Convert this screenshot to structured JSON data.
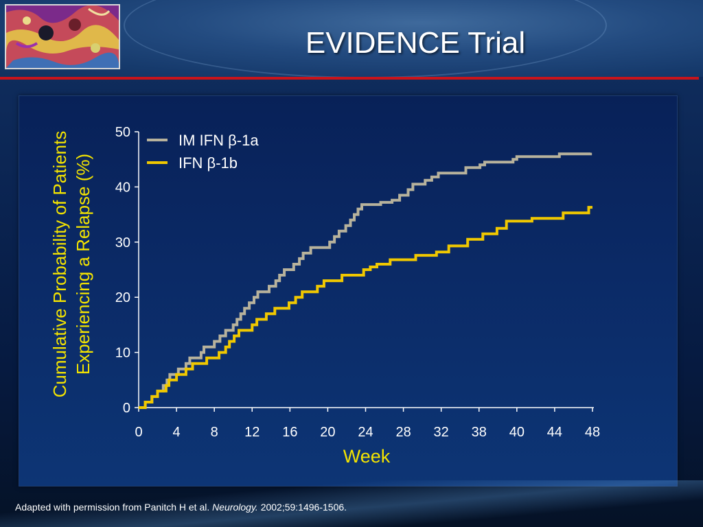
{
  "slide": {
    "title": "EVIDENCE Trial",
    "footnote": {
      "prefix": "Adapted with permission from Panitch H et al. ",
      "journal": "Neurology.",
      "suffix": " 2002;59:1496-1506."
    }
  },
  "colors": {
    "title_text": "#ffffff",
    "axis_title": "#f4e400",
    "accent_rule": "#c8141b",
    "series_a": "#b7b29c",
    "series_b": "#f0c800"
  },
  "chart_data": {
    "type": "line",
    "title": "",
    "xlabel": "Week",
    "ylabel": "Cumulative Probability of Patients Experiencing a Relapse (%)",
    "ylabel_lines": [
      "Cumulative Probability of Patients",
      "Experiencing a Relapse (%)"
    ],
    "x_tick_labels": [
      "0",
      "4",
      "8",
      "12",
      "16",
      "20",
      "24",
      "28",
      "32",
      "38",
      "40",
      "44",
      "48"
    ],
    "y_ticks": [
      0,
      10,
      20,
      30,
      40,
      50
    ],
    "xlim": [
      0,
      48
    ],
    "ylim": [
      0,
      50
    ],
    "grid": false,
    "legend_position": "top-left",
    "series": [
      {
        "name": "IM IFN β-1a",
        "step": true,
        "points": [
          [
            0,
            0
          ],
          [
            0.7,
            1
          ],
          [
            1.4,
            2
          ],
          [
            2.0,
            3
          ],
          [
            2.6,
            4
          ],
          [
            3.0,
            5
          ],
          [
            3.3,
            6
          ],
          [
            4.2,
            7
          ],
          [
            5.0,
            8
          ],
          [
            5.4,
            9
          ],
          [
            6.6,
            10
          ],
          [
            6.9,
            11
          ],
          [
            8.0,
            12
          ],
          [
            8.6,
            13
          ],
          [
            9.2,
            14
          ],
          [
            10.0,
            15
          ],
          [
            10.4,
            16
          ],
          [
            10.8,
            17
          ],
          [
            11.2,
            18
          ],
          [
            11.7,
            19
          ],
          [
            12.2,
            20
          ],
          [
            12.6,
            21
          ],
          [
            13.8,
            22
          ],
          [
            14.5,
            23
          ],
          [
            14.9,
            24
          ],
          [
            15.4,
            25
          ],
          [
            16.4,
            26
          ],
          [
            17.0,
            27
          ],
          [
            17.4,
            28
          ],
          [
            18.2,
            29
          ],
          [
            20.2,
            30
          ],
          [
            20.7,
            31
          ],
          [
            21.2,
            32
          ],
          [
            21.9,
            33
          ],
          [
            22.4,
            34
          ],
          [
            22.8,
            35
          ],
          [
            23.2,
            36
          ],
          [
            23.6,
            36.8
          ],
          [
            25.6,
            37.2
          ],
          [
            26.8,
            37.6
          ],
          [
            27.6,
            38.5
          ],
          [
            28.5,
            39.5
          ],
          [
            29.0,
            40.5
          ],
          [
            30.3,
            41.2
          ],
          [
            31.0,
            41.8
          ],
          [
            31.7,
            42.5
          ],
          [
            34.6,
            43.5
          ],
          [
            36.1,
            44
          ],
          [
            36.6,
            44.5
          ],
          [
            39.6,
            45
          ],
          [
            40.0,
            45.5
          ],
          [
            44.5,
            46
          ],
          [
            47.8,
            46.2
          ]
        ]
      },
      {
        "name": "IFN β-1b",
        "step": true,
        "points": [
          [
            0,
            0
          ],
          [
            0.7,
            1
          ],
          [
            1.4,
            2
          ],
          [
            2.0,
            3
          ],
          [
            2.9,
            4
          ],
          [
            3.2,
            5
          ],
          [
            4.0,
            6
          ],
          [
            5.0,
            7
          ],
          [
            5.7,
            8
          ],
          [
            7.2,
            9
          ],
          [
            8.5,
            10
          ],
          [
            9.2,
            11
          ],
          [
            9.6,
            12
          ],
          [
            10.1,
            13
          ],
          [
            10.6,
            14
          ],
          [
            12.0,
            15
          ],
          [
            12.5,
            16
          ],
          [
            13.5,
            17
          ],
          [
            14.4,
            18
          ],
          [
            15.9,
            19
          ],
          [
            16.6,
            20
          ],
          [
            17.3,
            21
          ],
          [
            18.9,
            22
          ],
          [
            19.6,
            23
          ],
          [
            21.5,
            24
          ],
          [
            23.8,
            25
          ],
          [
            24.5,
            25.5
          ],
          [
            25.2,
            26
          ],
          [
            26.6,
            26.8
          ],
          [
            29.3,
            27.6
          ],
          [
            31.5,
            28.2
          ],
          [
            32.8,
            29.3
          ],
          [
            34.8,
            30.5
          ],
          [
            36.4,
            31.5
          ],
          [
            37.9,
            32.5
          ],
          [
            38.9,
            33.8
          ],
          [
            41.6,
            34.3
          ],
          [
            44.9,
            35.3
          ],
          [
            47.6,
            36.3
          ],
          [
            48.0,
            36.3
          ]
        ]
      }
    ]
  }
}
